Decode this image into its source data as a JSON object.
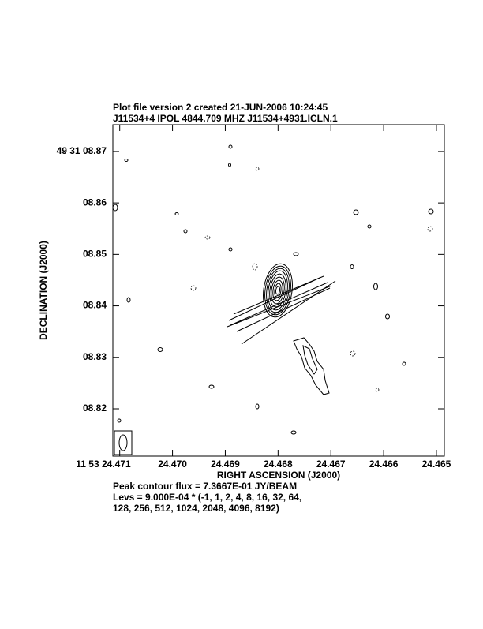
{
  "chart_data": {
    "type": "contour",
    "title": "Plot file version 2  created 21-JUN-2006 10:24:45",
    "subtitle": "J11534+4  IPOL  4844.709 MHZ  J11534+4931.ICLN.1",
    "xlabel": "RIGHT ASCENSION (J2000)",
    "ylabel": "DECLINATION (J2000)",
    "xlim": [
      24.47113,
      24.46485
    ],
    "ylim": [
      8.8108,
      8.8752
    ],
    "xticks": [
      {
        "value": 24.471,
        "label": "11 53 24.471"
      },
      {
        "value": 24.47,
        "label": "24.470"
      },
      {
        "value": 24.469,
        "label": "24.469"
      },
      {
        "value": 24.468,
        "label": "24.468"
      },
      {
        "value": 24.467,
        "label": "24.467"
      },
      {
        "value": 24.466,
        "label": "24.466"
      },
      {
        "value": 24.465,
        "label": "24.465"
      }
    ],
    "yticks": [
      {
        "value": 8.87,
        "label": "49 31 08.87"
      },
      {
        "value": 8.86,
        "label": "08.86"
      },
      {
        "value": 8.85,
        "label": "08.85"
      },
      {
        "value": 8.84,
        "label": "08.84"
      },
      {
        "value": 8.83,
        "label": "08.83"
      },
      {
        "value": 8.82,
        "label": "08.82"
      }
    ],
    "annotations": [
      "Peak contour flux =  7.3667E-01 JY/BEAM",
      "Levs = 9.000E-04 * (-1, 1, 2, 4, 8, 16, 32, 64,",
      "128, 256, 512, 1024, 2048, 4096, 8192)"
    ]
  }
}
